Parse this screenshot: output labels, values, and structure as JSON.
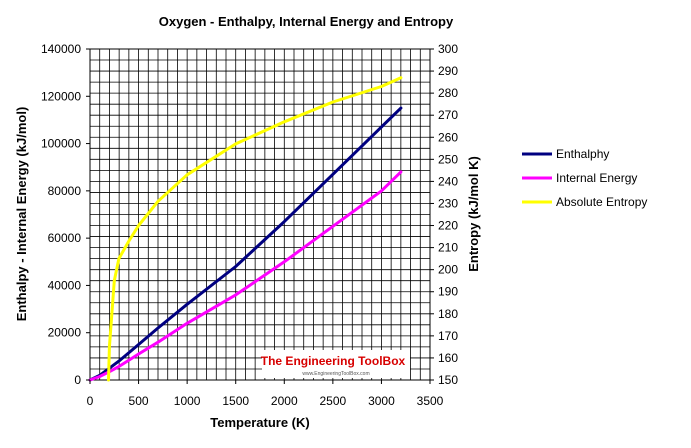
{
  "chart_data": {
    "type": "line",
    "title": "Oxygen - Enthalpy, Internal Energy and Entropy",
    "xlabel": "Temperature (K)",
    "ylabel": "Enthalpy - Internal Energy (kJ/mol)",
    "y2label": "Entropy (kJ/mol K)",
    "xlim": [
      0,
      3500
    ],
    "ylim": [
      0,
      140000
    ],
    "y2lim": [
      150,
      300
    ],
    "x_ticks": [
      0,
      500,
      1000,
      1500,
      2000,
      2500,
      3000,
      3500
    ],
    "y_ticks": [
      0,
      20000,
      40000,
      60000,
      80000,
      100000,
      120000,
      140000
    ],
    "y2_ticks": [
      150,
      160,
      170,
      180,
      190,
      200,
      210,
      220,
      230,
      240,
      250,
      260,
      270,
      280,
      290,
      300
    ],
    "grid": true,
    "legend_position": "right",
    "series": [
      {
        "name": "Enthalphy",
        "axis": "left",
        "color": "#000080",
        "x": [
          0,
          100,
          200,
          298,
          500,
          700,
          1000,
          1500,
          2000,
          2500,
          3000,
          3200
        ],
        "values": [
          0,
          2000,
          5000,
          8000,
          15000,
          22000,
          32000,
          48000,
          67000,
          87000,
          107000,
          115000
        ]
      },
      {
        "name": "Internal Energy",
        "axis": "left",
        "color": "#ff00ff",
        "x": [
          0,
          100,
          200,
          298,
          500,
          700,
          1000,
          1500,
          2000,
          2500,
          3000,
          3200
        ],
        "values": [
          0,
          1500,
          3500,
          5700,
          11000,
          16000,
          24000,
          36000,
          50000,
          65000,
          80000,
          88000
        ]
      },
      {
        "name": "Absolute Entropy",
        "axis": "right",
        "color": "#ffff00",
        "x": [
          190,
          200,
          250,
          298,
          400,
          500,
          700,
          1000,
          1500,
          2000,
          2500,
          3000,
          3200
        ],
        "values": [
          150,
          165,
          195,
          205,
          213,
          220,
          231,
          243,
          257,
          267,
          276,
          283,
          287
        ]
      }
    ]
  },
  "watermark": {
    "title": "The Engineering ToolBox",
    "subtitle": "www.EngineeringToolBox.com"
  },
  "colors": {
    "background": "#ffffff",
    "grid": "#000000",
    "watermark_bg": "#ffffff",
    "watermark_text": "#d70000"
  }
}
